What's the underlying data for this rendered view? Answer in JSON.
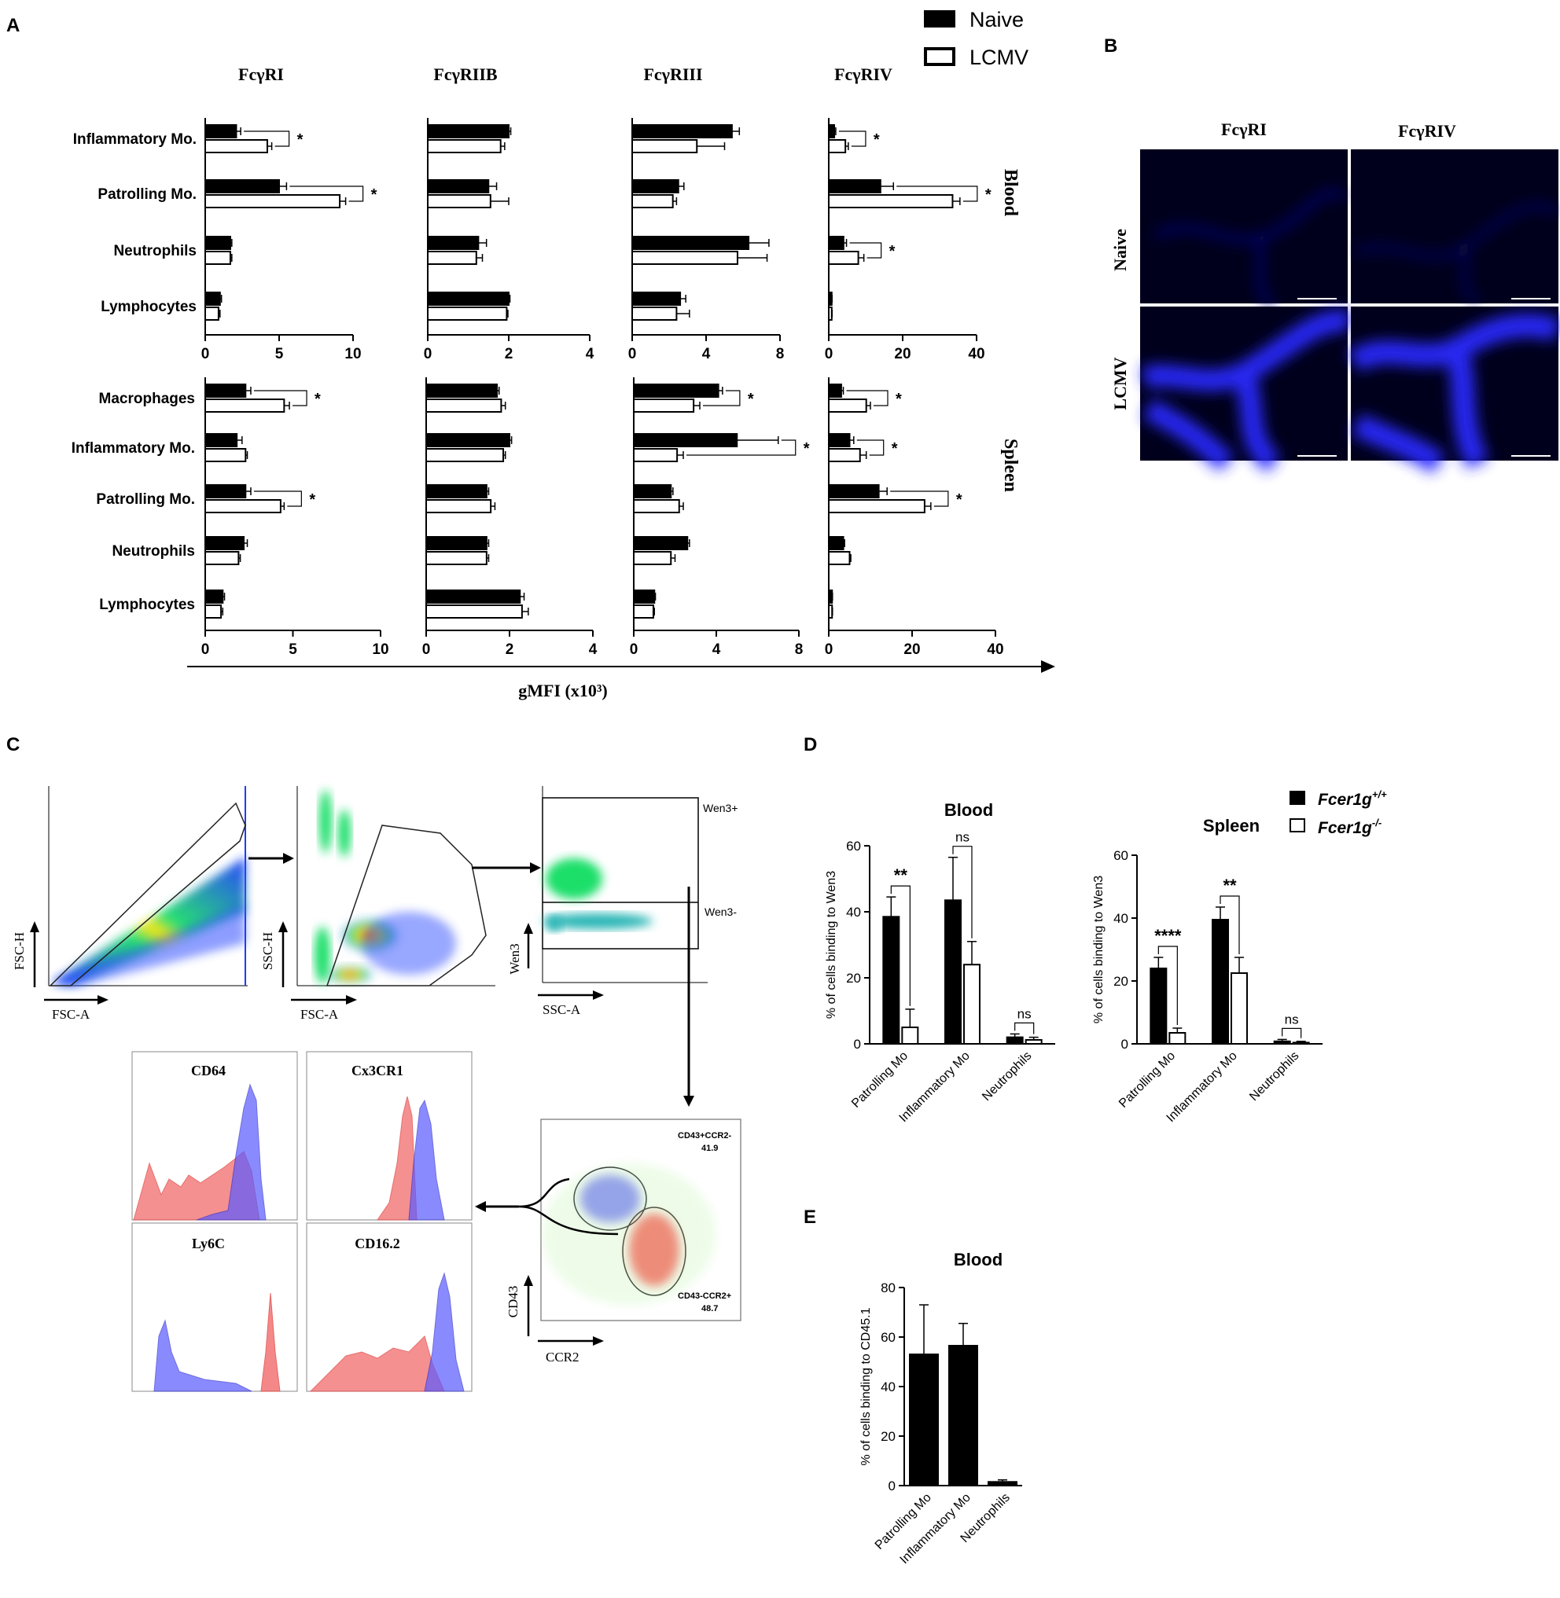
{
  "panel_labels": {
    "A": "A",
    "B": "B",
    "C": "C",
    "D": "D",
    "E": "E"
  },
  "legend_A": {
    "naive": "Naive",
    "lcmv": "LCMV"
  },
  "legend_D": {
    "wt": "Fcer1g",
    "wt_sup": "+/+",
    "ko": "Fcer1g",
    "ko_sup": "-/-"
  },
  "panelA": {
    "xlabel": "gMFI (x10³)",
    "receptors": [
      "FcγRI",
      "FcγRIIB",
      "FcγRIII",
      "FcγRIV"
    ],
    "tissues": [
      "Blood",
      "Spleen"
    ],
    "chart_data": [
      {
        "type": "bar",
        "orientation": "horizontal",
        "tissue": "Blood",
        "receptor": "FcγRI",
        "xlim": [
          0,
          10
        ],
        "ticks": [
          "0",
          "5",
          "10"
        ],
        "categories": [
          "Inflammatory Mo.",
          "Patrolling Mo.",
          "Neutrophils",
          "Lymphocytes"
        ],
        "series": [
          {
            "name": "Naive",
            "values": [
              2.1,
              5.0,
              1.7,
              1.0
            ],
            "errors": [
              0.3,
              0.5,
              0.1,
              0.1
            ]
          },
          {
            "name": "LCMV",
            "values": [
              4.2,
              9.1,
              1.7,
              0.9
            ],
            "errors": [
              0.3,
              0.4,
              0.1,
              0.1
            ]
          }
        ],
        "significance": [
          {
            "category": 0,
            "label": "*"
          },
          {
            "category": 1,
            "label": "*"
          }
        ]
      },
      {
        "type": "bar",
        "orientation": "horizontal",
        "tissue": "Blood",
        "receptor": "FcγRIIB",
        "xlim": [
          0,
          4
        ],
        "ticks": [
          "0",
          "2",
          "4"
        ],
        "categories": [
          "Inflammatory Mo.",
          "Patrolling Mo.",
          "Neutrophils",
          "Lymphocytes"
        ],
        "series": [
          {
            "name": "Naive",
            "values": [
              2.0,
              1.5,
              1.25,
              2.0
            ],
            "errors": [
              0.05,
              0.2,
              0.2,
              0.03
            ]
          },
          {
            "name": "LCMV",
            "values": [
              1.8,
              1.55,
              1.2,
              1.95
            ],
            "errors": [
              0.1,
              0.45,
              0.15,
              0.03
            ]
          }
        ],
        "significance": []
      },
      {
        "type": "bar",
        "orientation": "horizontal",
        "tissue": "Blood",
        "receptor": "FcγRIII",
        "xlim": [
          0,
          8
        ],
        "ticks": [
          "0",
          "4",
          "8"
        ],
        "categories": [
          "Inflammatory Mo.",
          "Patrolling Mo.",
          "Neutrophils",
          "Lymphocytes"
        ],
        "series": [
          {
            "name": "Naive",
            "values": [
              5.4,
              2.5,
              6.3,
              2.6
            ],
            "errors": [
              0.4,
              0.3,
              1.1,
              0.3
            ]
          },
          {
            "name": "LCMV",
            "values": [
              3.5,
              2.2,
              5.7,
              2.4
            ],
            "errors": [
              1.5,
              0.2,
              1.6,
              0.7
            ]
          }
        ],
        "significance": []
      },
      {
        "type": "bar",
        "orientation": "horizontal",
        "tissue": "Blood",
        "receptor": "FcγRIV",
        "xlim": [
          0,
          40
        ],
        "ticks": [
          "0",
          "20",
          "40"
        ],
        "categories": [
          "Inflammatory Mo.",
          "Patrolling Mo.",
          "Neutrophils",
          "Lymphocytes"
        ],
        "series": [
          {
            "name": "Naive",
            "values": [
              1.5,
              14.0,
              4.0,
              0.8
            ],
            "errors": [
              0.4,
              3.5,
              0.8,
              0.1
            ]
          },
          {
            "name": "LCMV",
            "values": [
              4.5,
              33.5,
              8.0,
              0.8
            ],
            "errors": [
              0.8,
              2.0,
              1.5,
              0.1
            ]
          }
        ],
        "significance": [
          {
            "category": 0,
            "label": "*"
          },
          {
            "category": 1,
            "label": "*"
          },
          {
            "category": 2,
            "label": "*"
          }
        ]
      },
      {
        "type": "bar",
        "orientation": "horizontal",
        "tissue": "Spleen",
        "receptor": "FcγRI",
        "xlim": [
          0,
          10
        ],
        "ticks": [
          "0",
          "5",
          "10"
        ],
        "categories": [
          "Macrophages",
          "Inflammatory Mo.",
          "Patrolling Mo.",
          "Neutrophils",
          "Lymphocytes"
        ],
        "series": [
          {
            "name": "Naive",
            "values": [
              2.3,
              1.8,
              2.3,
              2.2,
              1.0
            ],
            "errors": [
              0.3,
              0.3,
              0.3,
              0.2,
              0.1
            ]
          },
          {
            "name": "LCMV",
            "values": [
              4.5,
              2.3,
              4.3,
              1.9,
              0.9
            ],
            "errors": [
              0.3,
              0.1,
              0.2,
              0.1,
              0.1
            ]
          }
        ],
        "significance": [
          {
            "category": 0,
            "label": "*"
          },
          {
            "category": 2,
            "label": "*"
          }
        ]
      },
      {
        "type": "bar",
        "orientation": "horizontal",
        "tissue": "Spleen",
        "receptor": "FcγRIIB",
        "xlim": [
          0,
          4
        ],
        "ticks": [
          "0",
          "2",
          "4"
        ],
        "categories": [
          "Macrophages",
          "Inflammatory Mo.",
          "Patrolling Mo.",
          "Neutrophils",
          "Lymphocytes"
        ],
        "series": [
          {
            "name": "Naive",
            "values": [
              1.7,
              2.0,
              1.45,
              1.45,
              2.25
            ],
            "errors": [
              0.05,
              0.05,
              0.05,
              0.05,
              0.1
            ]
          },
          {
            "name": "LCMV",
            "values": [
              1.8,
              1.85,
              1.55,
              1.45,
              2.3
            ],
            "errors": [
              0.1,
              0.05,
              0.1,
              0.05,
              0.15
            ]
          }
        ],
        "significance": []
      },
      {
        "type": "bar",
        "orientation": "horizontal",
        "tissue": "Spleen",
        "receptor": "FcγRIII",
        "xlim": [
          0,
          8
        ],
        "ticks": [
          "0",
          "4",
          "8"
        ],
        "categories": [
          "Macrophages",
          "Inflammatory Mo.",
          "Patrolling Mo.",
          "Neutrophils",
          "Lymphocytes"
        ],
        "series": [
          {
            "name": "Naive",
            "values": [
              4.1,
              5.0,
              1.8,
              2.6,
              1.0
            ],
            "errors": [
              0.2,
              2.0,
              0.1,
              0.1,
              0.05
            ]
          },
          {
            "name": "LCMV",
            "values": [
              2.9,
              2.1,
              2.2,
              1.8,
              0.95
            ],
            "errors": [
              0.3,
              0.3,
              0.2,
              0.2,
              0.05
            ]
          }
        ],
        "significance": [
          {
            "category": 0,
            "label": "*"
          },
          {
            "category": 1,
            "label": "*"
          }
        ]
      },
      {
        "type": "bar",
        "orientation": "horizontal",
        "tissue": "Spleen",
        "receptor": "FcγRIV",
        "xlim": [
          0,
          40
        ],
        "ticks": [
          "0",
          "20",
          "40"
        ],
        "categories": [
          "Macrophages",
          "Inflammatory Mo.",
          "Patrolling Mo.",
          "Neutrophils",
          "Lymphocytes"
        ],
        "series": [
          {
            "name": "Naive",
            "values": [
              3.0,
              5.0,
              12.0,
              3.5,
              0.8
            ],
            "errors": [
              0.5,
              1.0,
              2.0,
              0.3,
              0.1
            ]
          },
          {
            "name": "LCMV",
            "values": [
              9.0,
              7.5,
              23.0,
              5.0,
              0.8
            ],
            "errors": [
              1.0,
              1.5,
              1.5,
              0.3,
              0.1
            ]
          }
        ],
        "significance": [
          {
            "category": 0,
            "label": "*"
          },
          {
            "category": 1,
            "label": "*"
          },
          {
            "category": 2,
            "label": "*"
          }
        ]
      }
    ]
  },
  "panelB": {
    "cols": [
      "FcγRI",
      "FcγRIV"
    ],
    "rows": [
      "Naive",
      "LCMV"
    ]
  },
  "panelC": {
    "axes": {
      "fsc_h": "FSC-H",
      "fsc_a": "FSC-A",
      "ssc_h": "SSC-H",
      "fsc_a2": "FSC-A",
      "wen3": "Wen3",
      "ssc_a": "SSC-A",
      "cd43": "CD43",
      "ccr2": "CCR2"
    },
    "gates": {
      "wen3_pos": "Wen3+",
      "wen3_neg": "Wen3-",
      "g1_name": "CD43+CCR2-",
      "g1_val": "41.9",
      "g2_name": "CD43-CCR2+",
      "g2_val": "48.7"
    },
    "histograms": [
      "CD64",
      "Cx3CR1",
      "Ly6C",
      "CD16.2"
    ]
  },
  "panelD": {
    "chart_data": [
      {
        "type": "bar",
        "title": "Blood",
        "ylabel": "% of cells binding to Wen3",
        "ylim": [
          0,
          60
        ],
        "ticks": [
          "0",
          "20",
          "40",
          "60"
        ],
        "categories": [
          "Patrolling Mo",
          "Inflammatory Mo",
          "Neutrophils"
        ],
        "series": [
          {
            "name": "Fcer1g+/+",
            "values": [
              38.5,
              43.5,
              2.0
            ],
            "errors": [
              6,
              13,
              1
            ]
          },
          {
            "name": "Fcer1g-/-",
            "values": [
              5.0,
              24.0,
              1.2
            ],
            "errors": [
              5.5,
              7,
              0.8
            ]
          }
        ],
        "significance": [
          "**",
          "ns",
          "ns"
        ]
      },
      {
        "type": "bar",
        "title": "Spleen",
        "ylabel": "% of cells binding to Wen3",
        "ylim": [
          0,
          60
        ],
        "ticks": [
          "0",
          "20",
          "40",
          "60"
        ],
        "categories": [
          "Patrolling Mo",
          "Inflammatory Mo",
          "Neutrophils"
        ],
        "series": [
          {
            "name": "Fcer1g+/+",
            "values": [
              24.0,
              39.5,
              0.8
            ],
            "errors": [
              3.5,
              4,
              0.6
            ]
          },
          {
            "name": "Fcer1g-/-",
            "values": [
              3.5,
              22.5,
              0.4
            ],
            "errors": [
              1.5,
              5,
              0.4
            ]
          }
        ],
        "significance": [
          "****",
          "**",
          "ns"
        ]
      }
    ]
  },
  "panelE": {
    "chart_data": {
      "type": "bar",
      "title": "Blood",
      "ylabel": "% of cells binding to CD45.1",
      "ylim": [
        0,
        80
      ],
      "ticks": [
        "0",
        "20",
        "40",
        "60",
        "80"
      ],
      "categories": [
        "Patrolling Mo",
        "Inflammatory Mo",
        "Neutrophils"
      ],
      "values": [
        53,
        56.5,
        1.5
      ],
      "errors": [
        20,
        9,
        0.8
      ]
    }
  }
}
